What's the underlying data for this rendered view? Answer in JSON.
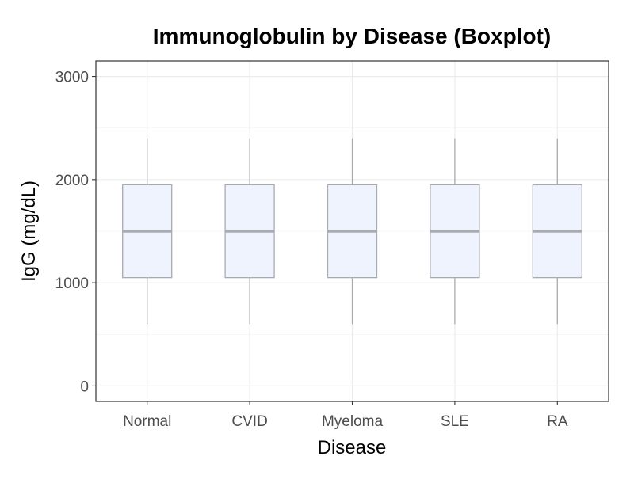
{
  "chart_data": {
    "type": "boxplot",
    "title": "Immunoglobulin by Disease (Boxplot)",
    "xlabel": "Disease",
    "ylabel": "IgG (mg/dL)",
    "categories": [
      "Normal",
      "CVID",
      "Myeloma",
      "SLE",
      "RA"
    ],
    "boxes": [
      {
        "category": "Normal",
        "whisker_low": 600,
        "q1": 1050,
        "median": 1500,
        "q3": 1950,
        "whisker_high": 2400
      },
      {
        "category": "CVID",
        "whisker_low": 600,
        "q1": 1050,
        "median": 1500,
        "q3": 1950,
        "whisker_high": 2400
      },
      {
        "category": "Myeloma",
        "whisker_low": 600,
        "q1": 1050,
        "median": 1500,
        "q3": 1950,
        "whisker_high": 2400
      },
      {
        "category": "SLE",
        "whisker_low": 600,
        "q1": 1050,
        "median": 1500,
        "q3": 1950,
        "whisker_high": 2400
      },
      {
        "category": "RA",
        "whisker_low": 600,
        "q1": 1050,
        "median": 1500,
        "q3": 1950,
        "whisker_high": 2400
      }
    ],
    "ylim": [
      -150,
      3150
    ],
    "yticks": [
      0,
      1000,
      2000,
      3000
    ],
    "ytick_labels": [
      "0",
      "1000",
      "2000",
      "3000"
    ],
    "grid": true,
    "colors": {
      "box_fill": "#eef3fe",
      "box_stroke": "#a9abb0",
      "median": "#a9abb0",
      "whisker": "#a9abb0",
      "grid": "#ebebeb",
      "panel_border": "#333333",
      "tick_text": "#4d4d4d",
      "label_text": "#000000"
    }
  }
}
